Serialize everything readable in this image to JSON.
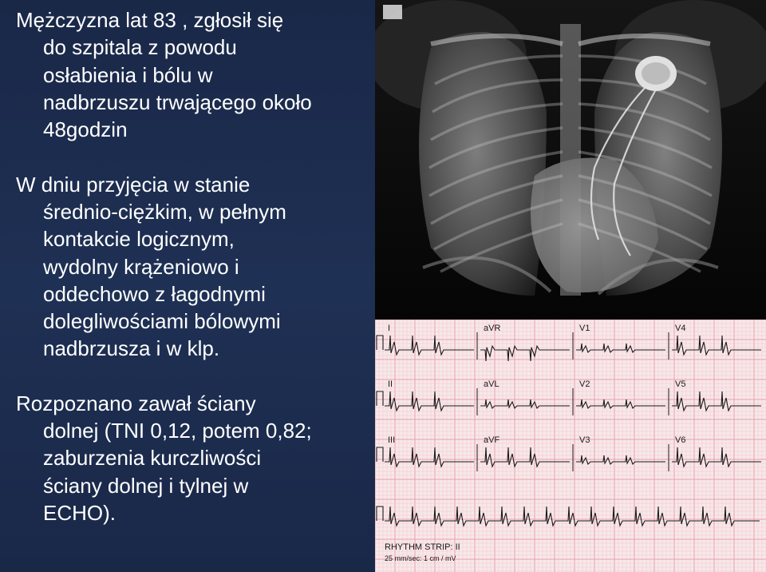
{
  "text": {
    "title_l1": "Mężczyzna lat 83 , zgłosił się",
    "title_l2": "do  szpitala z powodu",
    "title_l3": "osłabienia i bólu w",
    "title_l4": "nadbrzuszu trwającego około",
    "title_l5": "48godzin",
    "p2_l1": "W dniu przyjęcia w stanie",
    "p2_l2": "średnio-ciężkim, w pełnym",
    "p2_l3": "kontakcie logicznym,",
    "p2_l4": "wydolny krążeniowo i",
    "p2_l5": "oddechowo z łagodnymi",
    "p2_l6": "dolegliwościami bólowymi",
    "p2_l7": "nadbrzusza i w klp.",
    "p3_l1": "Rozpoznano zawał ściany",
    "p3_l2": "dolnej (TNI 0,12, potem 0,82;",
    "p3_l3": "zaburzenia kurczliwości",
    "p3_l4": "ściany dolnej i tylnej w",
    "p3_l5": "ECHO)."
  },
  "xray": {
    "bg": "#0a0a0a",
    "lung_fill": "#555555",
    "lung_hilite": "#8a8a8a",
    "bone": "#c8c8c8",
    "soft": "#2a2a2a",
    "lead_fill": "#d8d8d8",
    "pacemaker_fill": "#e8e8e8"
  },
  "ecg": {
    "bg": "#f7e8ea",
    "grid_minor": "#f2c6cc",
    "grid_major": "#e8a0aa",
    "trace": "#1a1a1a",
    "leads_row1": [
      "I",
      "aVR",
      "V1",
      "V4"
    ],
    "leads_row2": [
      "II",
      "aVL",
      "V2",
      "V5"
    ],
    "leads_row3": [
      "III",
      "aVF",
      "V3",
      "V6"
    ],
    "rhythm_label": "RHYTHM STRIP: II",
    "rhythm_speed": "25 mm/sec: 1 cm / mV"
  }
}
